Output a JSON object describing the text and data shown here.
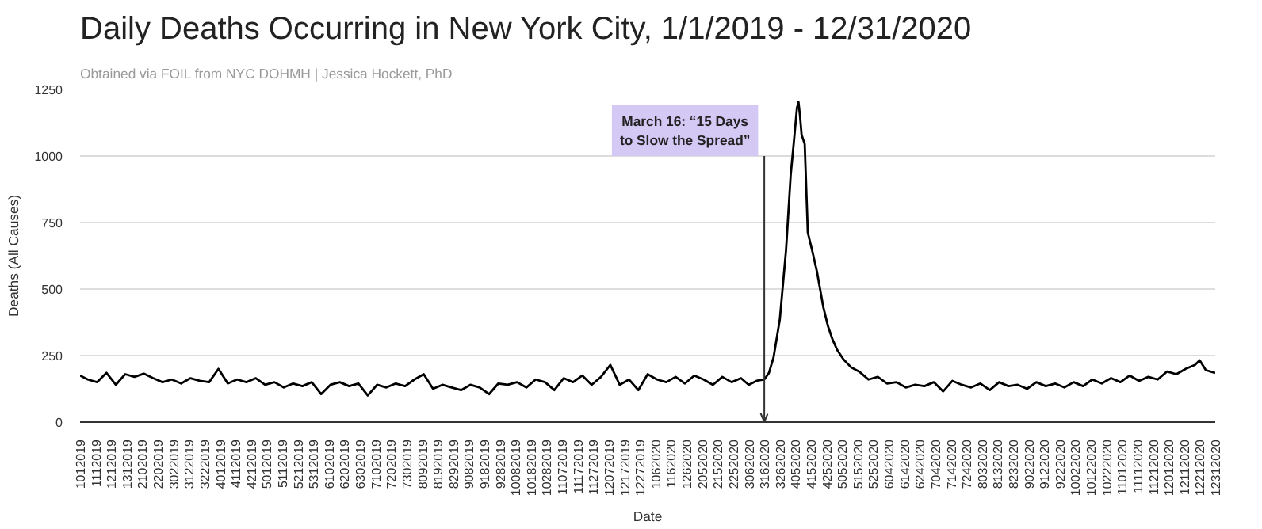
{
  "chart_data": {
    "type": "line",
    "title": "Daily Deaths Occurring in New York City, 1/1/2019 - 12/31/2020",
    "subtitle": "Obtained via FOIL from NYC DOHMH | Jessica Hockett, PhD",
    "xlabel": "Date",
    "ylabel": "Deaths (All Causes)",
    "x": [
      "2019-01-01",
      "2019-01-06",
      "2019-01-12",
      "2019-01-18",
      "2019-01-24",
      "2019-01-30",
      "2019-02-05",
      "2019-02-11",
      "2019-02-17",
      "2019-02-23",
      "2019-03-01",
      "2019-03-07",
      "2019-03-13",
      "2019-03-19",
      "2019-03-25",
      "2019-03-31",
      "2019-04-06",
      "2019-04-12",
      "2019-04-18",
      "2019-04-24",
      "2019-04-30",
      "2019-05-06",
      "2019-05-12",
      "2019-05-18",
      "2019-05-24",
      "2019-05-30",
      "2019-06-05",
      "2019-06-11",
      "2019-06-17",
      "2019-06-23",
      "2019-06-29",
      "2019-07-05",
      "2019-07-11",
      "2019-07-17",
      "2019-07-23",
      "2019-07-29",
      "2019-08-04",
      "2019-08-10",
      "2019-08-16",
      "2019-08-22",
      "2019-08-28",
      "2019-09-03",
      "2019-09-09",
      "2019-09-15",
      "2019-09-21",
      "2019-09-27",
      "2019-10-03",
      "2019-10-09",
      "2019-10-15",
      "2019-10-21",
      "2019-10-27",
      "2019-11-02",
      "2019-11-08",
      "2019-11-14",
      "2019-11-20",
      "2019-11-26",
      "2019-12-02",
      "2019-12-08",
      "2019-12-14",
      "2019-12-20",
      "2019-12-26",
      "2020-01-01",
      "2020-01-07",
      "2020-01-13",
      "2020-01-19",
      "2020-01-25",
      "2020-01-31",
      "2020-02-06",
      "2020-02-12",
      "2020-02-18",
      "2020-02-24",
      "2020-03-01",
      "2020-03-06",
      "2020-03-11",
      "2020-03-16",
      "2020-03-19",
      "2020-03-22",
      "2020-03-26",
      "2020-03-30",
      "2020-04-02",
      "2020-04-04",
      "2020-04-06",
      "2020-04-07",
      "2020-04-08",
      "2020-04-09",
      "2020-04-11",
      "2020-04-13",
      "2020-04-16",
      "2020-04-19",
      "2020-04-23",
      "2020-04-26",
      "2020-04-29",
      "2020-05-02",
      "2020-05-06",
      "2020-05-11",
      "2020-05-16",
      "2020-05-22",
      "2020-05-28",
      "2020-06-03",
      "2020-06-09",
      "2020-06-15",
      "2020-06-21",
      "2020-06-27",
      "2020-07-03",
      "2020-07-09",
      "2020-07-15",
      "2020-07-21",
      "2020-07-27",
      "2020-08-02",
      "2020-08-08",
      "2020-08-14",
      "2020-08-20",
      "2020-08-26",
      "2020-09-01",
      "2020-09-07",
      "2020-09-13",
      "2020-09-19",
      "2020-09-25",
      "2020-10-01",
      "2020-10-07",
      "2020-10-13",
      "2020-10-19",
      "2020-10-25",
      "2020-10-31",
      "2020-11-06",
      "2020-11-12",
      "2020-11-18",
      "2020-11-24",
      "2020-11-30",
      "2020-12-06",
      "2020-12-12",
      "2020-12-18",
      "2020-12-21",
      "2020-12-25",
      "2020-12-31"
    ],
    "series": [
      {
        "color": "#000000",
        "values": [
          175,
          160,
          150,
          185,
          140,
          180,
          170,
          182,
          165,
          150,
          160,
          145,
          165,
          155,
          150,
          200,
          145,
          160,
          150,
          165,
          140,
          150,
          130,
          145,
          135,
          150,
          105,
          140,
          150,
          135,
          145,
          100,
          140,
          130,
          145,
          135,
          160,
          180,
          125,
          140,
          130,
          120,
          140,
          130,
          105,
          145,
          140,
          150,
          130,
          160,
          150,
          120,
          165,
          150,
          175,
          140,
          170,
          215,
          140,
          160,
          120,
          180,
          160,
          150,
          170,
          145,
          175,
          160,
          140,
          170,
          150,
          165,
          140,
          155,
          160,
          185,
          244,
          386,
          647,
          930,
          1052,
          1180,
          1203,
          1150,
          1080,
          1045,
          712,
          640,
          562,
          431,
          360,
          309,
          270,
          235,
          205,
          190,
          160,
          170,
          145,
          150,
          130,
          140,
          135,
          150,
          115,
          155,
          140,
          130,
          145,
          120,
          150,
          135,
          140,
          125,
          150,
          135,
          145,
          130,
          150,
          135,
          160,
          145,
          165,
          150,
          175,
          155,
          170,
          160,
          190,
          180,
          200,
          215,
          232,
          195,
          185
        ]
      }
    ],
    "xlim": [
      "2019-01-01",
      "2020-12-31"
    ],
    "xticks": [
      {
        "value": "2019-01-01",
        "label": "1012019"
      },
      {
        "value": "2019-01-11",
        "label": "1112019"
      },
      {
        "value": "2019-01-21",
        "label": "1212019"
      },
      {
        "value": "2019-01-31",
        "label": "1312019"
      },
      {
        "value": "2019-02-10",
        "label": "2102019"
      },
      {
        "value": "2019-02-20",
        "label": "2202019"
      },
      {
        "value": "2019-03-02",
        "label": "3022019"
      },
      {
        "value": "2019-03-12",
        "label": "3122019"
      },
      {
        "value": "2019-03-22",
        "label": "3222019"
      },
      {
        "value": "2019-04-01",
        "label": "4012019"
      },
      {
        "value": "2019-04-11",
        "label": "4112019"
      },
      {
        "value": "2019-04-21",
        "label": "4212019"
      },
      {
        "value": "2019-05-01",
        "label": "5012019"
      },
      {
        "value": "2019-05-11",
        "label": "5112019"
      },
      {
        "value": "2019-05-21",
        "label": "5212019"
      },
      {
        "value": "2019-05-31",
        "label": "5312019"
      },
      {
        "value": "2019-06-10",
        "label": "6102019"
      },
      {
        "value": "2019-06-20",
        "label": "6202019"
      },
      {
        "value": "2019-06-30",
        "label": "6302019"
      },
      {
        "value": "2019-07-10",
        "label": "7102019"
      },
      {
        "value": "2019-07-20",
        "label": "7202019"
      },
      {
        "value": "2019-07-30",
        "label": "7302019"
      },
      {
        "value": "2019-08-09",
        "label": "8092019"
      },
      {
        "value": "2019-08-19",
        "label": "8192019"
      },
      {
        "value": "2019-08-29",
        "label": "8292019"
      },
      {
        "value": "2019-09-08",
        "label": "9082019"
      },
      {
        "value": "2019-09-18",
        "label": "9182019"
      },
      {
        "value": "2019-09-28",
        "label": "9282019"
      },
      {
        "value": "2019-10-08",
        "label": "10082019"
      },
      {
        "value": "2019-10-18",
        "label": "10182019"
      },
      {
        "value": "2019-10-28",
        "label": "10282019"
      },
      {
        "value": "2019-11-07",
        "label": "11072019"
      },
      {
        "value": "2019-11-17",
        "label": "11172019"
      },
      {
        "value": "2019-11-27",
        "label": "11272019"
      },
      {
        "value": "2019-12-07",
        "label": "12072019"
      },
      {
        "value": "2019-12-17",
        "label": "12172019"
      },
      {
        "value": "2019-12-27",
        "label": "12272019"
      },
      {
        "value": "2020-01-06",
        "label": "1062020"
      },
      {
        "value": "2020-01-16",
        "label": "1162020"
      },
      {
        "value": "2020-01-26",
        "label": "1262020"
      },
      {
        "value": "2020-02-05",
        "label": "2052020"
      },
      {
        "value": "2020-02-15",
        "label": "2152020"
      },
      {
        "value": "2020-02-25",
        "label": "2252020"
      },
      {
        "value": "2020-03-06",
        "label": "3062020"
      },
      {
        "value": "2020-03-16",
        "label": "3162020"
      },
      {
        "value": "2020-03-26",
        "label": "3262020"
      },
      {
        "value": "2020-04-05",
        "label": "4052020"
      },
      {
        "value": "2020-04-15",
        "label": "4152020"
      },
      {
        "value": "2020-04-25",
        "label": "4252020"
      },
      {
        "value": "2020-05-05",
        "label": "5052020"
      },
      {
        "value": "2020-05-15",
        "label": "5152020"
      },
      {
        "value": "2020-05-25",
        "label": "5252020"
      },
      {
        "value": "2020-06-04",
        "label": "6042020"
      },
      {
        "value": "2020-06-14",
        "label": "6142020"
      },
      {
        "value": "2020-06-24",
        "label": "6242020"
      },
      {
        "value": "2020-07-04",
        "label": "7042020"
      },
      {
        "value": "2020-07-14",
        "label": "7142020"
      },
      {
        "value": "2020-07-24",
        "label": "7242020"
      },
      {
        "value": "2020-08-03",
        "label": "8032020"
      },
      {
        "value": "2020-08-13",
        "label": "8132020"
      },
      {
        "value": "2020-08-23",
        "label": "8232020"
      },
      {
        "value": "2020-09-02",
        "label": "9022020"
      },
      {
        "value": "2020-09-12",
        "label": "9122020"
      },
      {
        "value": "2020-09-22",
        "label": "9222020"
      },
      {
        "value": "2020-10-02",
        "label": "10022020"
      },
      {
        "value": "2020-10-12",
        "label": "10122020"
      },
      {
        "value": "2020-10-22",
        "label": "10222020"
      },
      {
        "value": "2020-11-01",
        "label": "11012020"
      },
      {
        "value": "2020-11-11",
        "label": "11112020"
      },
      {
        "value": "2020-11-21",
        "label": "11212020"
      },
      {
        "value": "2020-12-01",
        "label": "12012020"
      },
      {
        "value": "2020-12-11",
        "label": "12112020"
      },
      {
        "value": "2020-12-21",
        "label": "12212020"
      },
      {
        "value": "2020-12-31",
        "label": "12312020"
      }
    ],
    "ylim": [
      0,
      1250
    ],
    "yticks": [
      0,
      250,
      500,
      750,
      1000,
      1250
    ],
    "grid": "y",
    "ref_lines": [
      {
        "axis": "x",
        "value": "2020-03-16",
        "label": "March 16: “15 Days to Slow the Spread”"
      }
    ]
  }
}
